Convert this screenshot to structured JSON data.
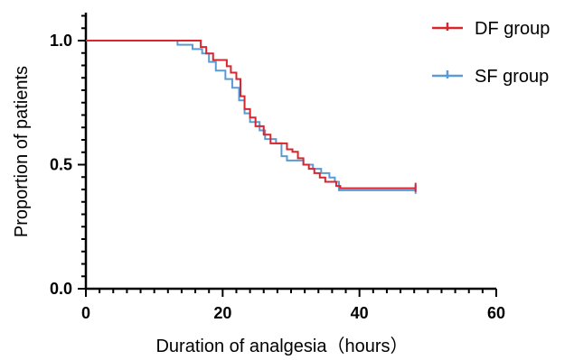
{
  "chart_data": {
    "type": "line",
    "xlabel": "Duration of analgesia（hours）",
    "ylabel": "Proportion of patients",
    "xlim": [
      0,
      60
    ],
    "ylim": [
      0,
      1.0
    ],
    "x_ticks": [
      "0",
      "20",
      "40",
      "60"
    ],
    "y_ticks": [
      "0.0",
      "0.5",
      "1.0"
    ],
    "legend_position": "top-right",
    "step": true,
    "series": [
      {
        "name": "DF group",
        "color": "#d7262e",
        "x": [
          0,
          16.8,
          17.6,
          18.6,
          20.6,
          21.2,
          22.0,
          22.6,
          23.2,
          24.0,
          24.8,
          26.0,
          27.0,
          29.4,
          30.2,
          31.0,
          31.8,
          32.6,
          33.4,
          34.2,
          35.0,
          36.6,
          37.2,
          48.2
        ],
        "y": [
          1.0,
          0.974,
          0.948,
          0.922,
          0.897,
          0.871,
          0.845,
          0.776,
          0.724,
          0.69,
          0.655,
          0.621,
          0.586,
          0.562,
          0.552,
          0.526,
          0.5,
          0.483,
          0.466,
          0.448,
          0.431,
          0.414,
          0.405,
          0.405
        ],
        "censored_x": [
          48.2
        ],
        "censored_y": [
          0.405
        ]
      },
      {
        "name": "SF group",
        "color": "#5b9bd5",
        "x": [
          0,
          13.4,
          15.6,
          17.0,
          18.0,
          19.0,
          20.4,
          21.4,
          22.4,
          23.2,
          24.0,
          25.4,
          26.2,
          27.8,
          28.6,
          29.4,
          31.8,
          33.2,
          34.4,
          35.6,
          36.4,
          37.0,
          48.2
        ],
        "y": [
          1.0,
          0.983,
          0.966,
          0.948,
          0.914,
          0.879,
          0.845,
          0.81,
          0.759,
          0.707,
          0.672,
          0.638,
          0.603,
          0.586,
          0.534,
          0.517,
          0.5,
          0.483,
          0.466,
          0.448,
          0.431,
          0.397,
          0.397
        ],
        "censored_x": [
          48.2
        ],
        "censored_y": [
          0.397
        ]
      }
    ]
  }
}
